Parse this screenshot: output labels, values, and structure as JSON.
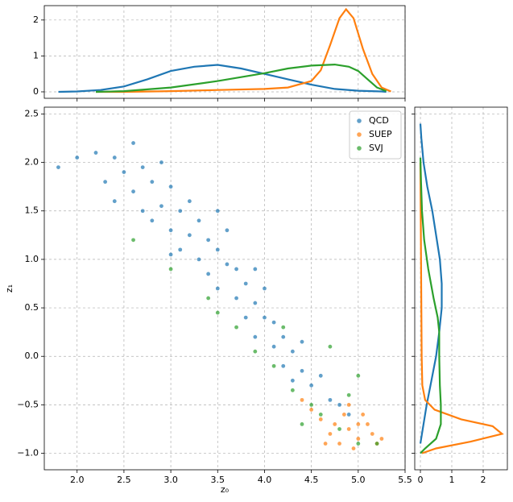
{
  "chart_data": [
    {
      "type": "scatter",
      "xlabel": "z₀",
      "ylabel": "z₁",
      "xlim": [
        1.65,
        5.5
      ],
      "ylim": [
        -1.17,
        2.57
      ],
      "grid": true,
      "legend": "upper right",
      "xticks": [
        {
          "value": 2,
          "label": "2.0"
        },
        2.5,
        {
          "value": 3,
          "label": "3.0"
        },
        3.5,
        {
          "value": 4,
          "label": "4.0"
        },
        4.5,
        {
          "value": 5,
          "label": "5.0"
        },
        5.5
      ],
      "yticks": [
        {
          "value": -1,
          "label": "−1.0"
        },
        {
          "value": -0.5,
          "label": "−0.5"
        },
        {
          "value": 0,
          "label": "0.0"
        },
        0.5,
        {
          "value": 1,
          "label": "1.0"
        },
        1.5,
        {
          "value": 2,
          "label": "2.0"
        },
        2.5
      ],
      "series": [
        {
          "name": "QCD",
          "color": "#1f77b4",
          "x": [
            2.4,
            2.5,
            2.6,
            2.6,
            2.7,
            2.7,
            2.8,
            2.8,
            2.9,
            2.9,
            3.0,
            3.0,
            3.1,
            3.1,
            3.2,
            3.2,
            3.3,
            3.3,
            3.4,
            3.4,
            3.5,
            3.5,
            3.6,
            3.6,
            3.7,
            3.7,
            3.8,
            3.8,
            3.9,
            3.9,
            4.0,
            4.0,
            4.1,
            4.1,
            4.2,
            4.2,
            4.3,
            4.3,
            4.4,
            4.4,
            4.5,
            4.6,
            4.7,
            4.8,
            2.2,
            2.3,
            1.8,
            2.0,
            3.5,
            4.9,
            2.4,
            3.0,
            3.9
          ],
          "values": [
            2.05,
            1.9,
            2.2,
            1.7,
            1.95,
            1.5,
            1.8,
            1.4,
            2.0,
            1.55,
            1.3,
            1.75,
            1.5,
            1.1,
            1.6,
            1.25,
            1.0,
            1.4,
            1.2,
            0.85,
            1.1,
            0.7,
            0.95,
            1.3,
            0.6,
            0.9,
            0.75,
            0.4,
            0.55,
            0.2,
            0.4,
            0.7,
            0.1,
            0.35,
            0.2,
            -0.1,
            0.05,
            -0.25,
            -0.15,
            0.15,
            -0.3,
            -0.2,
            -0.45,
            -0.5,
            2.1,
            1.8,
            1.95,
            2.05,
            1.5,
            -0.6,
            1.6,
            1.05,
            0.9
          ]
        },
        {
          "name": "SUEP",
          "color": "#ff7f0e",
          "x": [
            4.6,
            4.7,
            4.8,
            4.9,
            5.0,
            5.1,
            5.2,
            4.85,
            4.95,
            5.05,
            4.75,
            5.15,
            4.5,
            4.65,
            5.25,
            4.4,
            4.9,
            5.0
          ],
          "values": [
            -0.65,
            -0.8,
            -0.9,
            -0.75,
            -0.85,
            -0.7,
            -0.9,
            -0.6,
            -0.95,
            -0.6,
            -0.7,
            -0.8,
            -0.55,
            -0.9,
            -0.85,
            -0.45,
            -0.5,
            -0.7
          ]
        },
        {
          "name": "SVJ",
          "color": "#2ca02c",
          "x": [
            2.6,
            3.0,
            3.4,
            3.7,
            3.9,
            4.1,
            4.3,
            4.5,
            4.6,
            4.8,
            5.0,
            5.2,
            4.4,
            4.7,
            5.0,
            4.2,
            3.5,
            4.9
          ],
          "values": [
            1.2,
            0.9,
            0.6,
            0.3,
            0.05,
            -0.1,
            -0.35,
            -0.5,
            -0.6,
            -0.75,
            -0.9,
            -0.9,
            -0.7,
            0.1,
            -0.2,
            0.3,
            0.45,
            -0.4
          ]
        }
      ]
    },
    {
      "type": "line",
      "ylim": [
        -0.18,
        2.4
      ],
      "yticks": [
        0,
        1,
        2
      ],
      "grid": true,
      "series": [
        {
          "name": "QCD",
          "color": "#1f77b4",
          "x": [
            1.8,
            2.0,
            2.25,
            2.5,
            2.75,
            3.0,
            3.25,
            3.5,
            3.75,
            4.0,
            4.25,
            4.5,
            4.75,
            5.0,
            5.25,
            5.3
          ],
          "values": [
            0,
            0.01,
            0.05,
            0.15,
            0.35,
            0.58,
            0.7,
            0.75,
            0.65,
            0.5,
            0.35,
            0.2,
            0.08,
            0.03,
            0.01,
            0
          ]
        },
        {
          "name": "SUEP",
          "color": "#ff7f0e",
          "x": [
            2.2,
            2.5,
            3.0,
            3.5,
            4.0,
            4.25,
            4.5,
            4.6,
            4.7,
            4.8,
            4.87,
            4.95,
            5.05,
            5.15,
            5.25,
            5.35
          ],
          "values": [
            0,
            0,
            0.02,
            0.05,
            0.08,
            0.12,
            0.3,
            0.6,
            1.3,
            2.05,
            2.3,
            2.05,
            1.2,
            0.5,
            0.12,
            0.01
          ]
        },
        {
          "name": "SVJ",
          "color": "#2ca02c",
          "x": [
            2.2,
            2.5,
            3.0,
            3.5,
            4.0,
            4.25,
            4.5,
            4.75,
            4.9,
            5.0,
            5.1,
            5.2,
            5.3
          ],
          "values": [
            0,
            0.02,
            0.12,
            0.3,
            0.52,
            0.65,
            0.73,
            0.76,
            0.7,
            0.58,
            0.35,
            0.12,
            0.02
          ]
        }
      ]
    },
    {
      "type": "hline",
      "xlim": [
        -0.18,
        2.77
      ],
      "xticks": [
        0,
        1,
        2
      ],
      "grid": true,
      "series": [
        {
          "name": "QCD",
          "color": "#1f77b4",
          "y": [
            -0.9,
            -0.7,
            -0.5,
            -0.25,
            0,
            0.25,
            0.5,
            0.75,
            1.0,
            1.25,
            1.5,
            1.75,
            2.0,
            2.25,
            2.4
          ],
          "values": [
            0,
            0.1,
            0.2,
            0.35,
            0.5,
            0.6,
            0.68,
            0.68,
            0.62,
            0.5,
            0.38,
            0.22,
            0.1,
            0.03,
            0
          ]
        },
        {
          "name": "SUEP",
          "color": "#ff7f0e",
          "y": [
            -1.0,
            -0.95,
            -0.88,
            -0.8,
            -0.72,
            -0.65,
            -0.55,
            -0.45,
            -0.3,
            0,
            0.5,
            1.0,
            1.5,
            2.0
          ],
          "values": [
            0.05,
            0.5,
            1.6,
            2.6,
            2.3,
            1.3,
            0.45,
            0.15,
            0.06,
            0.04,
            0.03,
            0.02,
            0.01,
            0
          ]
        },
        {
          "name": "SVJ",
          "color": "#2ca02c",
          "y": [
            -1.0,
            -0.95,
            -0.85,
            -0.7,
            -0.5,
            -0.3,
            0,
            0.25,
            0.4,
            0.6,
            0.9,
            1.2,
            1.5,
            1.8,
            2.05
          ],
          "values": [
            0,
            0.15,
            0.5,
            0.65,
            0.65,
            0.62,
            0.6,
            0.6,
            0.55,
            0.42,
            0.25,
            0.12,
            0.05,
            0.02,
            0
          ]
        }
      ]
    }
  ]
}
